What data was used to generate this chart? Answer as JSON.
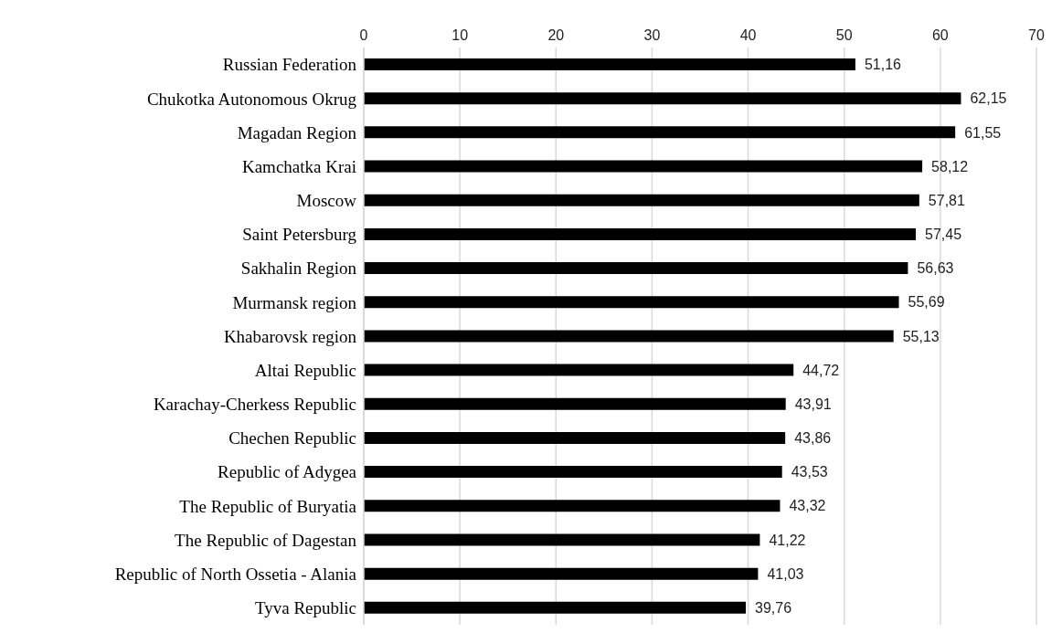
{
  "chart_data": {
    "type": "bar",
    "orientation": "horizontal",
    "categories": [
      "Russian Federation",
      "Chukotka Autonomous Okrug",
      "Magadan Region",
      "Kamchatka Krai",
      "Moscow",
      "Saint Petersburg",
      "Sakhalin Region",
      "Murmansk region",
      "Khabarovsk region",
      "Altai Republic",
      "Karachay-Cherkess Republic",
      "Chechen Republic",
      "Republic of Adygea",
      "The Republic of Buryatia",
      "The Republic of Dagestan",
      "Republic of North Ossetia - Alania",
      "Tyva Republic"
    ],
    "values": [
      51.16,
      62.15,
      61.55,
      58.12,
      57.81,
      57.45,
      56.63,
      55.69,
      55.13,
      44.72,
      43.91,
      43.86,
      43.53,
      43.32,
      41.22,
      41.03,
      39.76
    ],
    "value_labels": [
      "51,16",
      "62,15",
      "61,55",
      "58,12",
      "57,81",
      "57,45",
      "56,63",
      "55,69",
      "55,13",
      "44,72",
      "43,91",
      "43,86",
      "43,53",
      "43,32",
      "41,22",
      "41,03",
      "39,76"
    ],
    "color": "#000000",
    "xlim": [
      0,
      70
    ],
    "xticks": [
      0,
      10,
      20,
      30,
      40,
      50,
      60,
      70
    ],
    "grid": "x"
  }
}
